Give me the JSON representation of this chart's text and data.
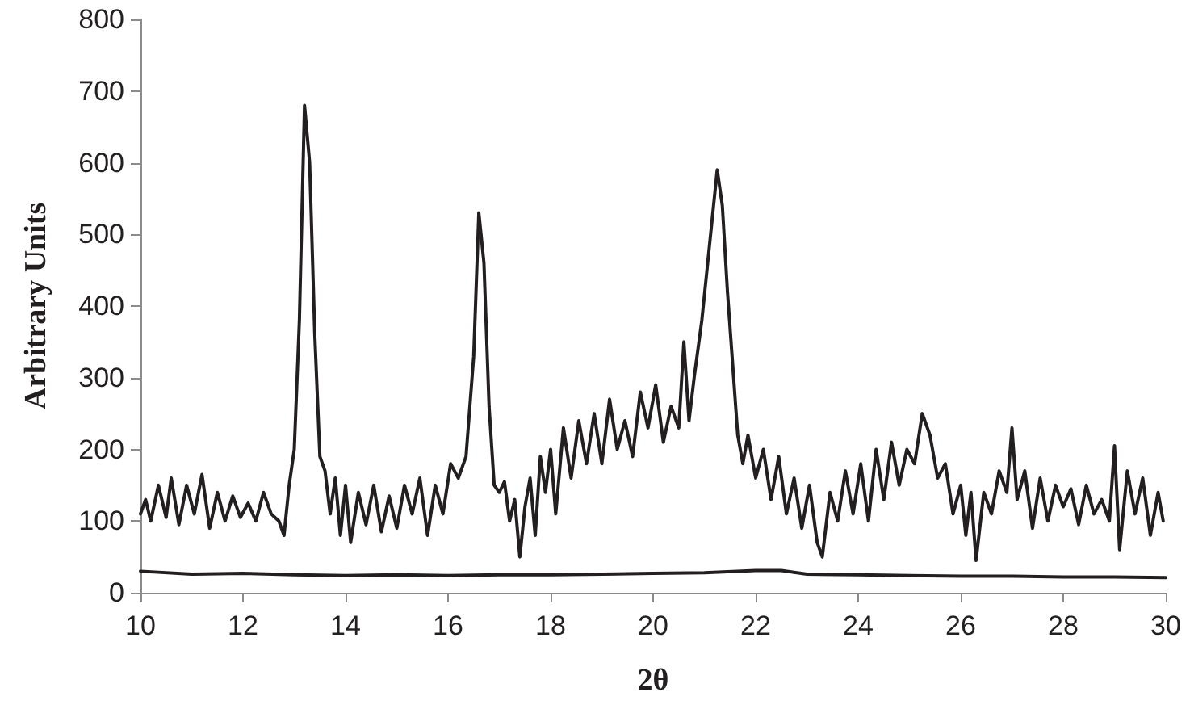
{
  "chart_data": {
    "type": "line",
    "xlabel": "2θ",
    "ylabel": "Arbitrary Units",
    "xlim": [
      10,
      30
    ],
    "xticks": [
      10,
      12,
      14,
      16,
      18,
      20,
      22,
      24,
      26,
      28,
      30
    ],
    "ylim": [
      0,
      800
    ],
    "yticks": [
      0,
      100,
      200,
      300,
      400,
      500,
      600,
      700,
      800
    ],
    "grid": false,
    "marker": "none",
    "line_style": "solid",
    "series": [
      {
        "color": "#231f20",
        "x": [
          10.0,
          10.1,
          10.2,
          10.35,
          10.5,
          10.6,
          10.75,
          10.9,
          11.05,
          11.2,
          11.35,
          11.5,
          11.65,
          11.8,
          11.95,
          12.1,
          12.25,
          12.4,
          12.55,
          12.7,
          12.8,
          12.9,
          13.0,
          13.1,
          13.2,
          13.3,
          13.4,
          13.5,
          13.6,
          13.7,
          13.8,
          13.9,
          14.0,
          14.1,
          14.25,
          14.4,
          14.55,
          14.7,
          14.85,
          15.0,
          15.15,
          15.3,
          15.45,
          15.6,
          15.75,
          15.9,
          16.05,
          16.2,
          16.35,
          16.5,
          16.6,
          16.7,
          16.8,
          16.9,
          17.0,
          17.1,
          17.2,
          17.3,
          17.4,
          17.5,
          17.6,
          17.7,
          17.8,
          17.9,
          18.0,
          18.1,
          18.25,
          18.4,
          18.55,
          18.7,
          18.85,
          19.0,
          19.15,
          19.3,
          19.45,
          19.6,
          19.75,
          19.9,
          20.05,
          20.2,
          20.35,
          20.5,
          20.6,
          20.7,
          20.8,
          20.95,
          21.05,
          21.15,
          21.25,
          21.35,
          21.45,
          21.55,
          21.65,
          21.75,
          21.85,
          22.0,
          22.15,
          22.3,
          22.45,
          22.6,
          22.75,
          22.9,
          23.05,
          23.2,
          23.3,
          23.45,
          23.6,
          23.75,
          23.9,
          24.05,
          24.2,
          24.35,
          24.5,
          24.65,
          24.8,
          24.95,
          25.1,
          25.25,
          25.4,
          25.55,
          25.7,
          25.85,
          26.0,
          26.1,
          26.2,
          26.3,
          26.45,
          26.6,
          26.75,
          26.9,
          27.0,
          27.1,
          27.25,
          27.4,
          27.55,
          27.7,
          27.85,
          28.0,
          28.15,
          28.3,
          28.45,
          28.6,
          28.75,
          28.9,
          29.0,
          29.1,
          29.25,
          29.4,
          29.55,
          29.7,
          29.85,
          29.95
        ],
        "values": [
          110,
          130,
          100,
          150,
          105,
          160,
          95,
          150,
          110,
          165,
          90,
          140,
          100,
          135,
          105,
          125,
          100,
          140,
          110,
          100,
          80,
          150,
          200,
          380,
          680,
          600,
          360,
          190,
          170,
          110,
          160,
          80,
          150,
          70,
          140,
          95,
          150,
          85,
          135,
          90,
          150,
          110,
          160,
          80,
          150,
          110,
          180,
          160,
          190,
          330,
          530,
          460,
          260,
          150,
          140,
          155,
          100,
          130,
          50,
          120,
          160,
          80,
          190,
          140,
          200,
          110,
          230,
          160,
          240,
          180,
          250,
          180,
          270,
          200,
          240,
          190,
          280,
          230,
          290,
          210,
          260,
          230,
          350,
          240,
          300,
          380,
          450,
          520,
          590,
          540,
          420,
          320,
          220,
          180,
          220,
          160,
          200,
          130,
          190,
          110,
          160,
          90,
          150,
          70,
          50,
          140,
          100,
          170,
          110,
          180,
          100,
          200,
          130,
          210,
          150,
          200,
          180,
          250,
          220,
          160,
          180,
          110,
          150,
          80,
          140,
          45,
          140,
          110,
          170,
          140,
          230,
          130,
          170,
          90,
          160,
          100,
          150,
          120,
          145,
          95,
          150,
          110,
          130,
          100,
          205,
          60,
          170,
          110,
          160,
          80,
          140,
          100
        ]
      },
      {
        "color": "#231f20",
        "x": [
          10,
          11,
          12,
          13,
          14,
          15,
          16,
          17,
          18,
          19,
          20,
          21,
          22,
          22.5,
          23,
          24,
          25,
          26,
          27,
          28,
          29,
          30
        ],
        "values": [
          30,
          26,
          27,
          25,
          24,
          25,
          24,
          25,
          25,
          26,
          27,
          28,
          31,
          31,
          26,
          25,
          24,
          23,
          23,
          22,
          22,
          21
        ]
      }
    ]
  }
}
